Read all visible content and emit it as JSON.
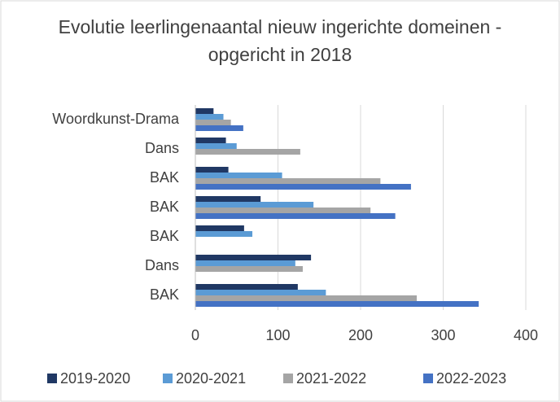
{
  "chart_data": {
    "type": "hbar",
    "title": "Evolutie leerlingenaantal nieuw ingerichte domeinen - opgericht in 2018",
    "categories": [
      "Woordkunst-Drama",
      "Dans",
      "BAK",
      "BAK",
      "BAK",
      "Dans",
      "BAK"
    ],
    "series": [
      {
        "name": "2019-2020",
        "color": "#203864",
        "values": [
          22,
          37,
          40,
          79,
          59,
          140,
          124
        ]
      },
      {
        "name": "2020-2021",
        "color": "#5b9bd5",
        "values": [
          34,
          50,
          105,
          143,
          69,
          121,
          158
        ]
      },
      {
        "name": "2021-2022",
        "color": "#a5a5a5",
        "values": [
          43,
          127,
          224,
          212,
          null,
          130,
          268
        ]
      },
      {
        "name": "2022-2023",
        "color": "#4472c4",
        "values": [
          58,
          null,
          261,
          242,
          null,
          null,
          343
        ]
      }
    ],
    "xlim": [
      0,
      400
    ],
    "xticks": [
      0,
      100,
      200,
      300,
      400
    ],
    "grid": true,
    "legend": "bottom"
  }
}
